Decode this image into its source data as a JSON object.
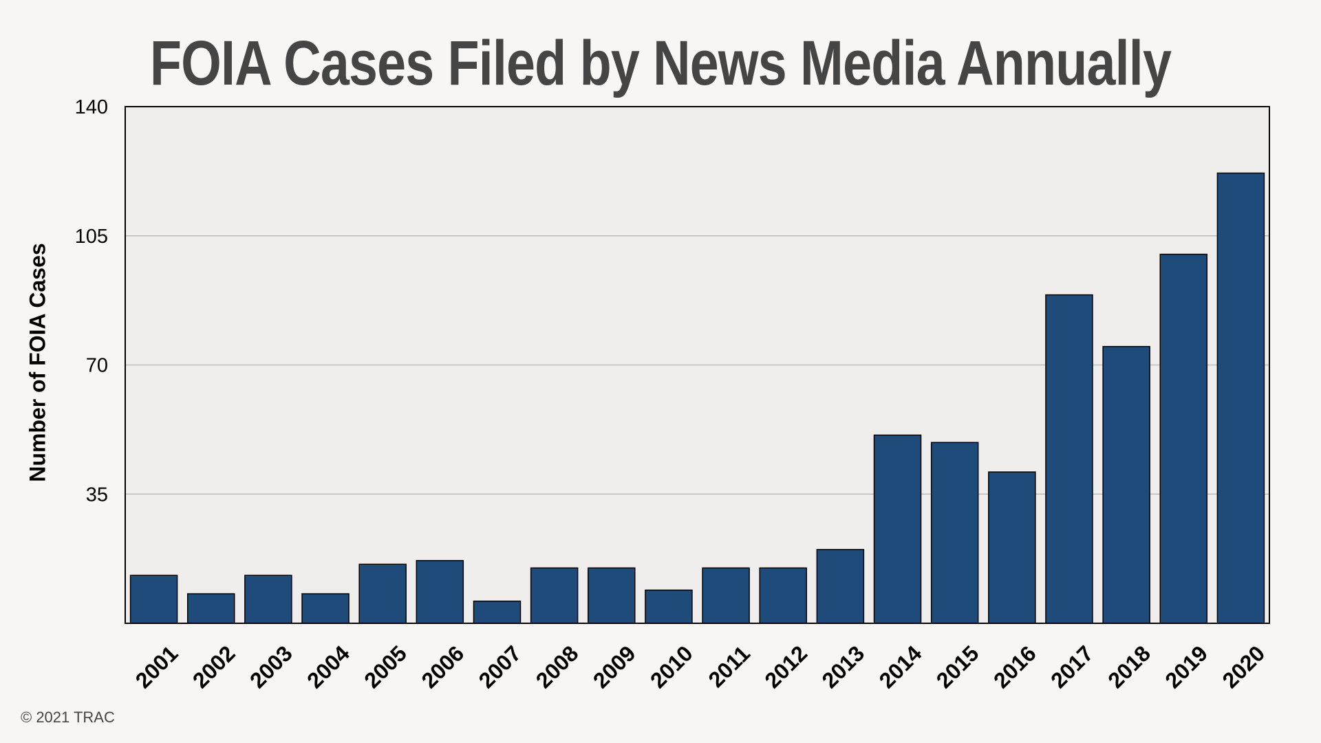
{
  "chart_data": {
    "type": "bar",
    "title": "FOIA Cases Filed by News Media Annually",
    "xlabel": "",
    "ylabel": "Number of FOIA Cases",
    "categories": [
      "2001",
      "2002",
      "2003",
      "2004",
      "2005",
      "2006",
      "2007",
      "2008",
      "2009",
      "2010",
      "2011",
      "2012",
      "2013",
      "2014",
      "2015",
      "2016",
      "2017",
      "2018",
      "2019",
      "2020"
    ],
    "values": [
      13,
      8,
      13,
      8,
      16,
      17,
      6,
      15,
      15,
      9,
      15,
      15,
      20,
      51,
      49,
      41,
      89,
      75,
      100,
      122
    ],
    "ylim": [
      0,
      140
    ],
    "yticks": [
      35,
      70,
      105,
      140
    ],
    "grid": true,
    "legend": "none",
    "colors": {
      "bar": "#1f4b7a",
      "plot_bg": "#efeeec",
      "page_bg": "#f7f6f4",
      "title": "#454545"
    }
  },
  "footer": {
    "copyright": "© 2021 TRAC"
  }
}
